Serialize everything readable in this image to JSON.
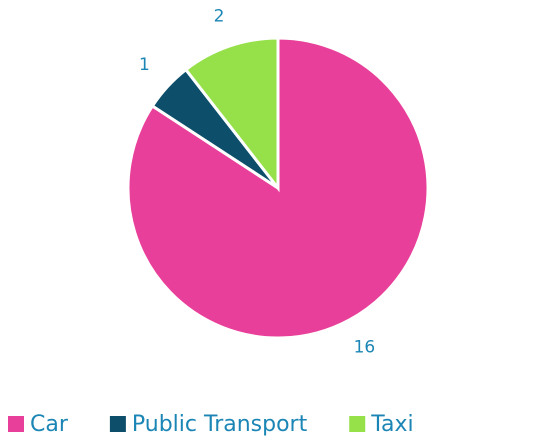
{
  "chart_data": {
    "type": "pie",
    "categories": [
      "Car",
      "Public Transport",
      "Taxi"
    ],
    "values": [
      16,
      1,
      2
    ],
    "colors": [
      "#e8409a",
      "#0d4f6b",
      "#96e04a"
    ],
    "legend": "bottom"
  }
}
